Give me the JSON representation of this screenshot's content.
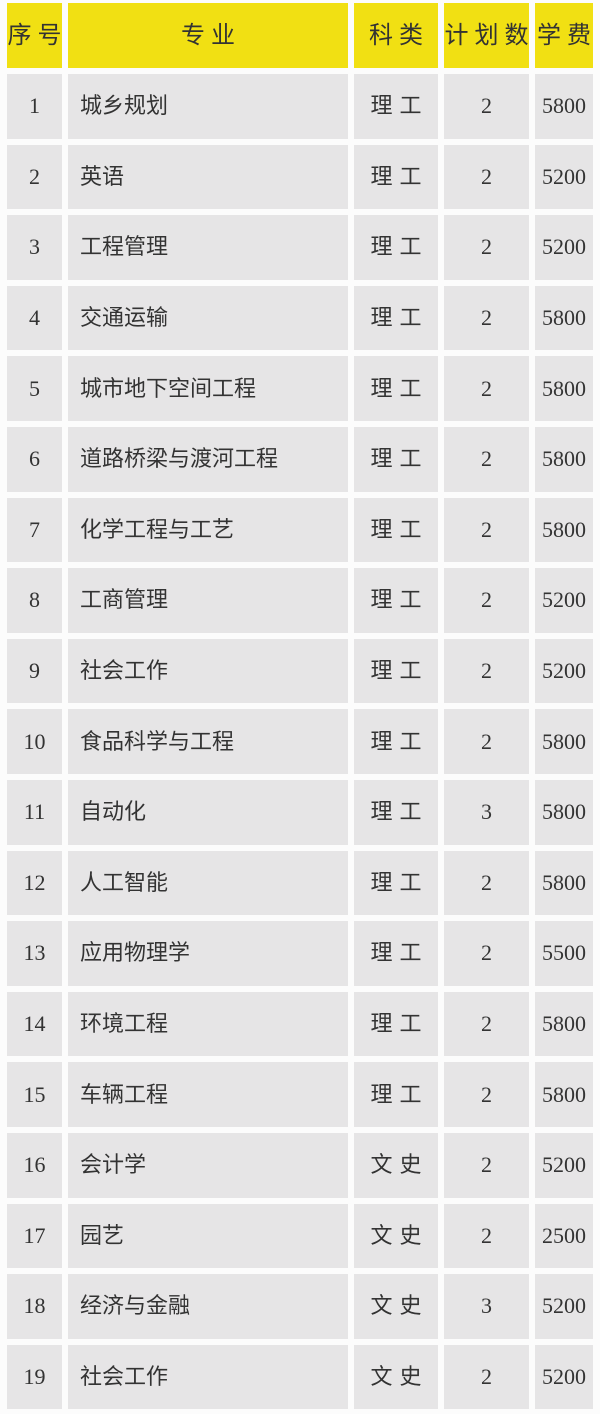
{
  "colors": {
    "page_bg": "#FCFCFC",
    "header_bg": "#F1E013",
    "cell_bg": "#E6E5E6",
    "text": "#333333"
  },
  "table": {
    "headers": {
      "number": "序号",
      "major": "专业",
      "category": "科类",
      "plan_count": "计划数",
      "tuition": "学费"
    },
    "rows": [
      {
        "number": "1",
        "major": "城乡规划",
        "category": "理工",
        "plan_count": "2",
        "tuition": "5800"
      },
      {
        "number": "2",
        "major": "英语",
        "category": "理工",
        "plan_count": "2",
        "tuition": "5200"
      },
      {
        "number": "3",
        "major": "工程管理",
        "category": "理工",
        "plan_count": "2",
        "tuition": "5200"
      },
      {
        "number": "4",
        "major": "交通运输",
        "category": "理工",
        "plan_count": "2",
        "tuition": "5800"
      },
      {
        "number": "5",
        "major": "城市地下空间工程",
        "category": "理工",
        "plan_count": "2",
        "tuition": "5800"
      },
      {
        "number": "6",
        "major": "道路桥梁与渡河工程",
        "category": "理工",
        "plan_count": "2",
        "tuition": "5800"
      },
      {
        "number": "7",
        "major": "化学工程与工艺",
        "category": "理工",
        "plan_count": "2",
        "tuition": "5800"
      },
      {
        "number": "8",
        "major": "工商管理",
        "category": "理工",
        "plan_count": "2",
        "tuition": "5200"
      },
      {
        "number": "9",
        "major": "社会工作",
        "category": "理工",
        "plan_count": "2",
        "tuition": "5200"
      },
      {
        "number": "10",
        "major": "食品科学与工程",
        "category": "理工",
        "plan_count": "2",
        "tuition": "5800"
      },
      {
        "number": "11",
        "major": "自动化",
        "category": "理工",
        "plan_count": "3",
        "tuition": "5800"
      },
      {
        "number": "12",
        "major": "人工智能",
        "category": "理工",
        "plan_count": "2",
        "tuition": "5800"
      },
      {
        "number": "13",
        "major": "应用物理学",
        "category": "理工",
        "plan_count": "2",
        "tuition": "5500"
      },
      {
        "number": "14",
        "major": "环境工程",
        "category": "理工",
        "plan_count": "2",
        "tuition": "5800"
      },
      {
        "number": "15",
        "major": "车辆工程",
        "category": "理工",
        "plan_count": "2",
        "tuition": "5800"
      },
      {
        "number": "16",
        "major": "会计学",
        "category": "文史",
        "plan_count": "2",
        "tuition": "5200"
      },
      {
        "number": "17",
        "major": "园艺",
        "category": "文史",
        "plan_count": "2",
        "tuition": "2500"
      },
      {
        "number": "18",
        "major": "经济与金融",
        "category": "文史",
        "plan_count": "3",
        "tuition": "5200"
      },
      {
        "number": "19",
        "major": "社会工作",
        "category": "文史",
        "plan_count": "2",
        "tuition": "5200"
      }
    ]
  }
}
